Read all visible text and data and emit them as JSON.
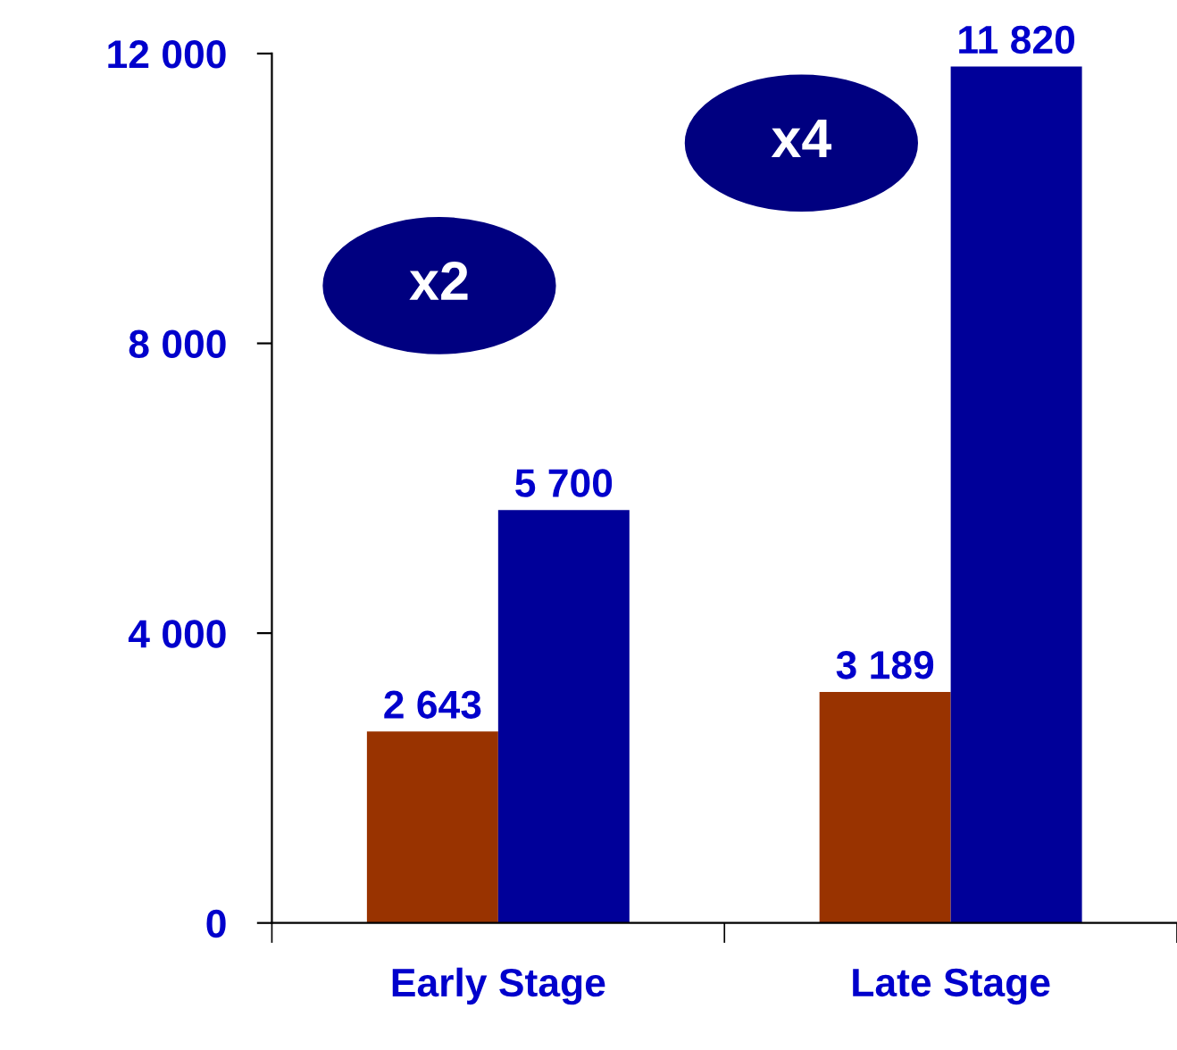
{
  "chart_data": {
    "type": "bar",
    "categories": [
      "Early Stage",
      "Late Stage"
    ],
    "series": [
      {
        "color": "#993300",
        "values": [
          2643,
          3189
        ],
        "value_labels": [
          "2 643",
          "3 189"
        ]
      },
      {
        "color": "#000099",
        "values": [
          5700,
          11820
        ],
        "value_labels": [
          "5 700",
          "11 820"
        ]
      }
    ],
    "ylim": [
      0,
      12000
    ],
    "yticks": [
      {
        "value": 0,
        "label": "0"
      },
      {
        "value": 4000,
        "label": "4 000"
      },
      {
        "value": 8000,
        "label": "8 000"
      },
      {
        "value": 12000,
        "label": "12 000"
      }
    ],
    "annotations": [
      "x2",
      "x4"
    ],
    "grid": false
  }
}
